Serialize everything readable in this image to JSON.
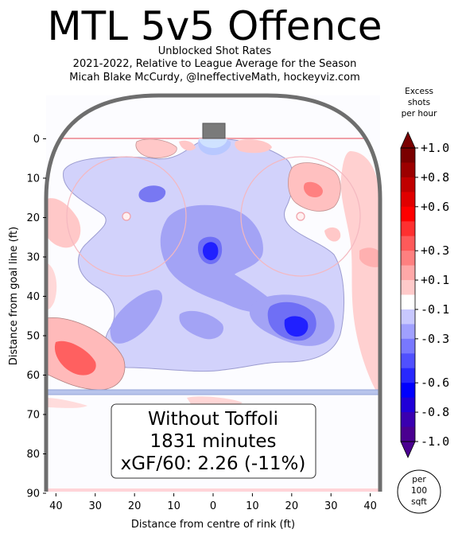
{
  "header": {
    "title": "MTL 5v5 Offence",
    "subtitle_1": "Unblocked Shot Rates",
    "subtitle_2": "2021-2022, Relative to League Average for the Season",
    "subtitle_3": "Micah Blake McCurdy, @IneffectiveMath, hockeyviz.com"
  },
  "annotation": {
    "line_1": "Without Toffoli",
    "line_2": "1831 minutes",
    "line_3": "xGF/60: 2.26 (-11%)"
  },
  "colorbar": {
    "title_1": "Excess",
    "title_2": "shots",
    "title_3": "per hour",
    "ticks": [
      "+1.0",
      "+0.8",
      "+0.6",
      "+0.3",
      "+0.1",
      "-0.1",
      "-0.3",
      "-0.6",
      "-0.8",
      "-1.0"
    ],
    "tick_values": [
      1.0,
      0.8,
      0.6,
      0.3,
      0.1,
      -0.1,
      -0.3,
      -0.6,
      -0.8,
      -1.0
    ],
    "colors": [
      "#7a0000",
      "#9c0000",
      "#c00000",
      "#e00000",
      "#ff0000",
      "#ff3030",
      "#ff5a5a",
      "#ff8080",
      "#ffa8a8",
      "#ffcaca",
      "#ffffff",
      "#c8c8ff",
      "#a0a0ff",
      "#7878ff",
      "#5050ff",
      "#2828ff",
      "#0000ff",
      "#2000d8",
      "#3a00b0",
      "#4a0090"
    ],
    "unit_1": "per",
    "unit_2": "100",
    "unit_3": "sqft"
  },
  "chart_data": {
    "type": "heatmap",
    "xlabel": "Distance from centre of rink (ft)",
    "ylabel": "Distance from goal line (ft)",
    "xlim": [
      -42.5,
      42.5
    ],
    "ylim": [
      90,
      -11
    ],
    "x_ticks": [
      -40,
      -30,
      -20,
      -10,
      0,
      10,
      20,
      30,
      40
    ],
    "x_tick_labels": [
      "40",
      "30",
      "20",
      "10",
      "0",
      "10",
      "20",
      "30",
      "40"
    ],
    "y_ticks": [
      0,
      10,
      20,
      30,
      40,
      50,
      60,
      70,
      80,
      90
    ],
    "y_tick_labels": [
      "0",
      "10",
      "20",
      "30",
      "40",
      "50",
      "60",
      "70",
      "80",
      "90"
    ],
    "regions": [
      {
        "x": 0,
        "y": 27,
        "value": -0.3
      },
      {
        "x": 0,
        "y": 29,
        "value": -0.6
      },
      {
        "x": 22,
        "y": 47,
        "value": -0.6
      },
      {
        "x": 20,
        "y": 46,
        "value": -0.3
      },
      {
        "x": 0,
        "y": 4,
        "value": -0.1
      },
      {
        "x": -16,
        "y": 14,
        "value": -0.3
      },
      {
        "x": -32,
        "y": 54,
        "value": 0.3
      },
      {
        "x": 24,
        "y": 13,
        "value": 0.3
      },
      {
        "x": 39,
        "y": 30,
        "value": 0.1
      }
    ]
  }
}
